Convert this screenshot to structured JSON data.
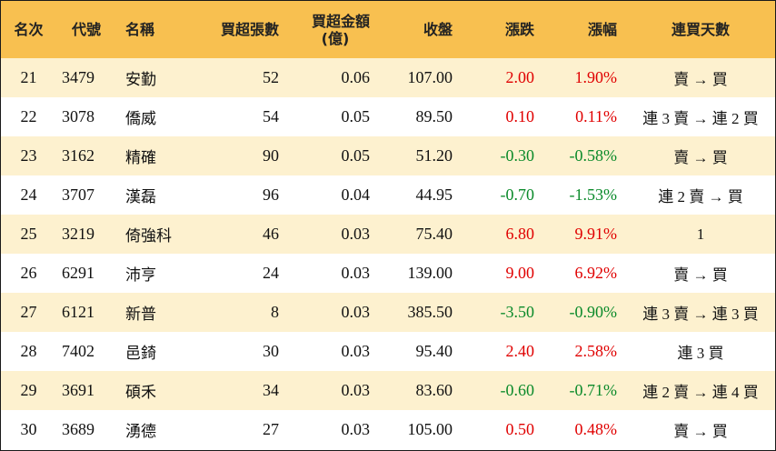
{
  "headers": {
    "rank": "名次",
    "code": "代號",
    "name": "名稱",
    "net_buy_lots": "買超張數",
    "net_buy_amount_line1": "買超金額",
    "net_buy_amount_line2": "(億)",
    "close": "收盤",
    "change": "漲跌",
    "change_pct": "漲幅",
    "consecutive_days": "連買天數"
  },
  "rows": [
    {
      "rank": "21",
      "code": "3479",
      "name": "安勤",
      "lots": "52",
      "amount": "0.06",
      "close": "107.00",
      "change": "2.00",
      "pct": "1.90%",
      "dir": "up",
      "days": "賣 → 買"
    },
    {
      "rank": "22",
      "code": "3078",
      "name": "僑威",
      "lots": "54",
      "amount": "0.05",
      "close": "89.50",
      "change": "0.10",
      "pct": "0.11%",
      "dir": "up",
      "days": "連 3 賣 → 連 2 買"
    },
    {
      "rank": "23",
      "code": "3162",
      "name": "精確",
      "lots": "90",
      "amount": "0.05",
      "close": "51.20",
      "change": "-0.30",
      "pct": "-0.58%",
      "dir": "down",
      "days": "賣 → 買"
    },
    {
      "rank": "24",
      "code": "3707",
      "name": "漢磊",
      "lots": "96",
      "amount": "0.04",
      "close": "44.95",
      "change": "-0.70",
      "pct": "-1.53%",
      "dir": "down",
      "days": "連 2 賣 → 買"
    },
    {
      "rank": "25",
      "code": "3219",
      "name": "倚強科",
      "lots": "46",
      "amount": "0.03",
      "close": "75.40",
      "change": "6.80",
      "pct": "9.91%",
      "dir": "up",
      "days": "1"
    },
    {
      "rank": "26",
      "code": "6291",
      "name": "沛亨",
      "lots": "24",
      "amount": "0.03",
      "close": "139.00",
      "change": "9.00",
      "pct": "6.92%",
      "dir": "up",
      "days": "賣 → 買"
    },
    {
      "rank": "27",
      "code": "6121",
      "name": "新普",
      "lots": "8",
      "amount": "0.03",
      "close": "385.50",
      "change": "-3.50",
      "pct": "-0.90%",
      "dir": "down",
      "days": "連 3 賣 → 連 3 買"
    },
    {
      "rank": "28",
      "code": "7402",
      "name": "邑錡",
      "lots": "30",
      "amount": "0.03",
      "close": "95.40",
      "change": "2.40",
      "pct": "2.58%",
      "dir": "up",
      "days": "連 3 買"
    },
    {
      "rank": "29",
      "code": "3691",
      "name": "碩禾",
      "lots": "34",
      "amount": "0.03",
      "close": "83.60",
      "change": "-0.60",
      "pct": "-0.71%",
      "dir": "down",
      "days": "連 2 賣 → 連 4 買"
    },
    {
      "rank": "30",
      "code": "3689",
      "name": "湧德",
      "lots": "27",
      "amount": "0.03",
      "close": "105.00",
      "change": "0.50",
      "pct": "0.48%",
      "dir": "up",
      "days": "賣 → 買"
    }
  ],
  "colors": {
    "header_bg": "#f8c050",
    "row_alt_bg": "#fdf1cf",
    "up": "#e00000",
    "down": "#0a8a2a"
  }
}
